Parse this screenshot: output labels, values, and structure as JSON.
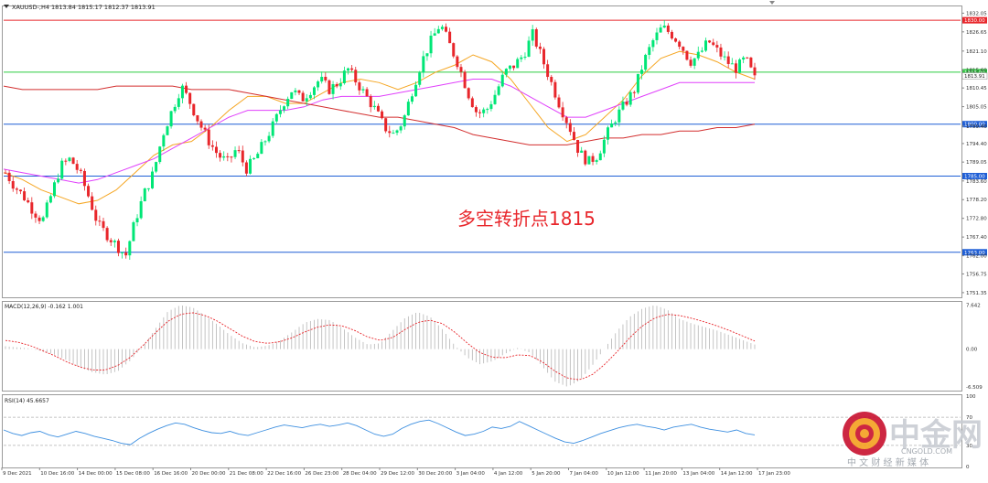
{
  "header": {
    "symbol_line": "XAUUSD-,H4  1813.84 1815.17 1812.37 1813.91"
  },
  "annotation": {
    "text": "多空转折点1815",
    "color": "#e8262b"
  },
  "watermark": {
    "brand": "中金网",
    "domain": "CNGOLD.COM",
    "tagline": "中 文 财 经 新 媒 体"
  },
  "colors": {
    "bull": "#00e676",
    "bear": "#e8262b",
    "ma_fast": "#f5a623",
    "ma_mid": "#e040fb",
    "ma_slow": "#d32f2f",
    "level_red": "#e8262b",
    "level_green": "#2ecc40",
    "level_blue": "#1f5fd6",
    "macd_signal": "#e8262b",
    "rsi": "#3d8fe0"
  },
  "chart_data": [
    {
      "type": "candlestick",
      "title": "XAUUSD-,H4",
      "ohlc_header": {
        "open": 1813.84,
        "high": 1815.17,
        "low": 1812.37,
        "close": 1813.91
      },
      "ylim": [
        1750.0,
        1834.0
      ],
      "y_ticks": [
        "1832.05",
        "1826.65",
        "1821.10",
        "1815.60",
        "1810.45",
        "1805.05",
        "1799.40",
        "1794.40",
        "1789.05",
        "1783.60",
        "1778.20",
        "1772.80",
        "1767.40",
        "1762.00",
        "1756.75",
        "1751.35"
      ],
      "price_labels": [
        {
          "text": "1830.00",
          "value": 1830.0,
          "color": "#e8262b"
        },
        {
          "text": "1815.00",
          "value": 1815.0,
          "color": "#2ecc40"
        },
        {
          "text": "1813.91",
          "value": 1813.91,
          "color": "#222222"
        },
        {
          "text": "1800.00",
          "value": 1800.0,
          "color": "#1f5fd6"
        },
        {
          "text": "1785.00",
          "value": 1785.0,
          "color": "#1f5fd6"
        },
        {
          "text": "1763.00",
          "value": 1763.0,
          "color": "#1f5fd6"
        }
      ],
      "levels": [
        {
          "value": 1830.0,
          "color": "#e8262b"
        },
        {
          "value": 1815.0,
          "color": "#2ecc40"
        },
        {
          "value": 1800.0,
          "color": "#1f5fd6"
        },
        {
          "value": 1785.0,
          "color": "#1f5fd6"
        },
        {
          "value": 1763.0,
          "color": "#1f5fd6"
        }
      ],
      "x_ticks": [
        "9 Dec 2021",
        "10 Dec 16:00",
        "14 Dec 00:00",
        "15 Dec 08:00",
        "16 Dec 16:00",
        "20 Dec 00:00",
        "21 Dec 08:00",
        "22 Dec 16:00",
        "26 Dec 23:00",
        "28 Dec 04:00",
        "29 Dec 12:00",
        "30 Dec 20:00",
        "3 Jan 04:00",
        "4 Jan 12:00",
        "5 Jan 20:00",
        "7 Jan 04:00",
        "10 Jan 12:00",
        "11 Jan 20:00",
        "13 Jan 04:00",
        "14 Jan 12:00",
        "17 Jan 23:00"
      ],
      "close_path": [
        1786,
        1782,
        1779,
        1775,
        1772,
        1780,
        1788,
        1790,
        1786,
        1779,
        1771,
        1768,
        1765,
        1762,
        1772,
        1780,
        1786,
        1797,
        1804,
        1811,
        1806,
        1800,
        1795,
        1791,
        1789,
        1793,
        1787,
        1790,
        1795,
        1800,
        1806,
        1810,
        1807,
        1810,
        1813,
        1810,
        1812,
        1816,
        1812,
        1808,
        1804,
        1799,
        1797,
        1801,
        1810,
        1818,
        1824,
        1829,
        1823,
        1817,
        1809,
        1803,
        1804,
        1809,
        1815,
        1817,
        1820,
        1826,
        1819,
        1812,
        1805,
        1799,
        1792,
        1789,
        1791,
        1797,
        1802,
        1806,
        1810,
        1818,
        1824,
        1828,
        1826,
        1823,
        1818,
        1820,
        1824,
        1821,
        1818,
        1816,
        1819,
        1813
      ],
      "moving_averages": [
        {
          "color": "#f5a623",
          "values": [
            1786,
            1784,
            1781,
            1779,
            1777,
            1778,
            1781,
            1786,
            1791,
            1794,
            1795,
            1799,
            1804,
            1808,
            1808,
            1806,
            1806,
            1809,
            1812,
            1813,
            1812,
            1810,
            1812,
            1815,
            1817,
            1820,
            1818,
            1813,
            1806,
            1799,
            1795,
            1797,
            1802,
            1807,
            1814,
            1819,
            1821,
            1820,
            1818,
            1815,
            1813
          ]
        },
        {
          "color": "#e040fb",
          "values": [
            1787,
            1786,
            1785,
            1784,
            1783,
            1784,
            1786,
            1788,
            1790,
            1793,
            1796,
            1799,
            1802,
            1804,
            1804,
            1804,
            1805,
            1807,
            1808,
            1808,
            1808,
            1809,
            1810,
            1811,
            1812,
            1813,
            1813,
            1811,
            1808,
            1805,
            1802,
            1802,
            1804,
            1806,
            1808,
            1810,
            1812,
            1812,
            1812,
            1812,
            1812
          ]
        },
        {
          "color": "#d32f2f",
          "values": [
            1811,
            1810,
            1810,
            1810,
            1810,
            1810,
            1811,
            1811,
            1811,
            1811,
            1810,
            1810,
            1810,
            1809,
            1808,
            1807,
            1806,
            1805,
            1804,
            1803,
            1802,
            1802,
            1801,
            1800,
            1799,
            1797,
            1796,
            1795,
            1794,
            1794,
            1794,
            1795,
            1796,
            1796,
            1797,
            1797,
            1798,
            1798,
            1799,
            1799,
            1800
          ]
        }
      ]
    },
    {
      "type": "histogram_line",
      "title": "MACD(12,26,9) -0.162 1.001",
      "ylim": [
        -7.0,
        8.0
      ],
      "y_ticks": [
        "7.642",
        "0.00",
        "-6.509"
      ],
      "histogram_profile": [
        0.5,
        0.3,
        0.1,
        -0.4,
        -1.0,
        -2.0,
        -3.2,
        -4.0,
        -4.4,
        -3.8,
        -2.0,
        0.5,
        3.5,
        6.5,
        7.6,
        7.2,
        5.8,
        4.2,
        2.4,
        1.0,
        0.3,
        0.6,
        1.5,
        3.0,
        4.6,
        5.2,
        5.0,
        3.6,
        2.0,
        0.8,
        1.0,
        3.2,
        5.4,
        6.4,
        5.6,
        3.4,
        0.6,
        -1.5,
        -2.6,
        -2.1,
        -0.8,
        0.2,
        -0.6,
        -3.0,
        -5.6,
        -6.5,
        -5.4,
        -2.8,
        0.2,
        3.2,
        5.6,
        7.0,
        7.6,
        6.8,
        5.2,
        4.4,
        3.8,
        3.2,
        2.4,
        1.6,
        0.8
      ],
      "signal_profile": [
        1.5,
        1.2,
        0.6,
        -0.3,
        -1.2,
        -2.3,
        -3.1,
        -3.6,
        -3.6,
        -2.8,
        -1.4,
        0.6,
        2.8,
        4.8,
        6.0,
        6.3,
        5.8,
        4.8,
        3.5,
        2.2,
        1.3,
        1.0,
        1.3,
        2.0,
        3.0,
        3.8,
        4.2,
        4.0,
        3.2,
        2.1,
        1.5,
        2.0,
        3.4,
        4.6,
        5.0,
        4.4,
        2.9,
        1.0,
        -0.6,
        -1.4,
        -1.5,
        -1.0,
        -1.1,
        -2.2,
        -3.8,
        -5.0,
        -5.3,
        -4.4,
        -2.6,
        -0.4,
        2.0,
        4.0,
        5.4,
        6.0,
        5.8,
        5.3,
        4.7,
        4.0,
        3.2,
        2.3,
        1.4
      ]
    },
    {
      "type": "line",
      "title": "RSI(14) 45.6657",
      "ylim": [
        0,
        100
      ],
      "y_ticks": [
        "100",
        "70",
        "30",
        "0"
      ],
      "values": [
        52,
        47,
        44,
        48,
        50,
        45,
        42,
        46,
        50,
        47,
        43,
        40,
        37,
        33,
        31,
        40,
        47,
        53,
        58,
        62,
        60,
        55,
        51,
        48,
        47,
        50,
        46,
        44,
        48,
        52,
        56,
        59,
        57,
        55,
        58,
        60,
        57,
        59,
        62,
        58,
        52,
        46,
        43,
        46,
        54,
        60,
        64,
        66,
        61,
        55,
        49,
        44,
        46,
        50,
        56,
        54,
        57,
        64,
        58,
        52,
        46,
        40,
        35,
        33,
        37,
        42,
        47,
        51,
        55,
        58,
        60,
        57,
        55,
        52,
        56,
        58,
        60,
        56,
        53,
        51,
        49,
        52,
        47,
        45
      ]
    }
  ]
}
